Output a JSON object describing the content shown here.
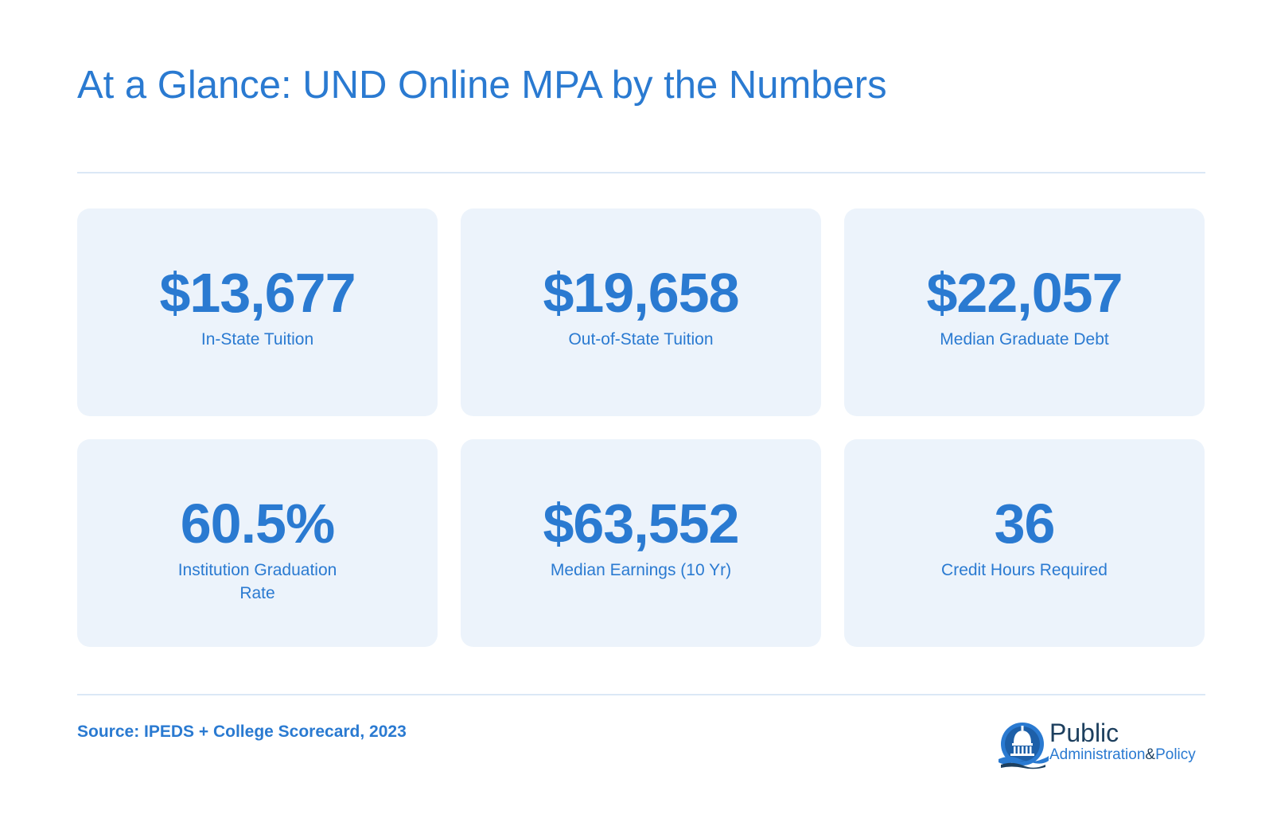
{
  "title": "At a Glance: UND Online MPA by the Numbers",
  "stats": [
    {
      "value": "$13,677",
      "label": "In-State Tuition"
    },
    {
      "value": "$19,658",
      "label": "Out-of-State Tuition"
    },
    {
      "value": "$22,057",
      "label": "Median Graduate Debt"
    },
    {
      "value": "60.5%",
      "label": "Institution Graduation Rate"
    },
    {
      "value": "$63,552",
      "label": "Median Earnings (10 Yr)"
    },
    {
      "value": "36",
      "label": "Credit Hours Required"
    }
  ],
  "source": "Source: IPEDS + College Scorecard, 2023",
  "logo": {
    "line1": "Public",
    "line2_a": "Administration",
    "line2_amp": "&",
    "line2_b": "Policy",
    "icon": "capitol-dome-icon"
  },
  "colors": {
    "accent": "#2a7ad1",
    "card_bg": "#ecf3fb",
    "rule": "#dbe8f6",
    "logo_dark": "#1d3f5e"
  }
}
